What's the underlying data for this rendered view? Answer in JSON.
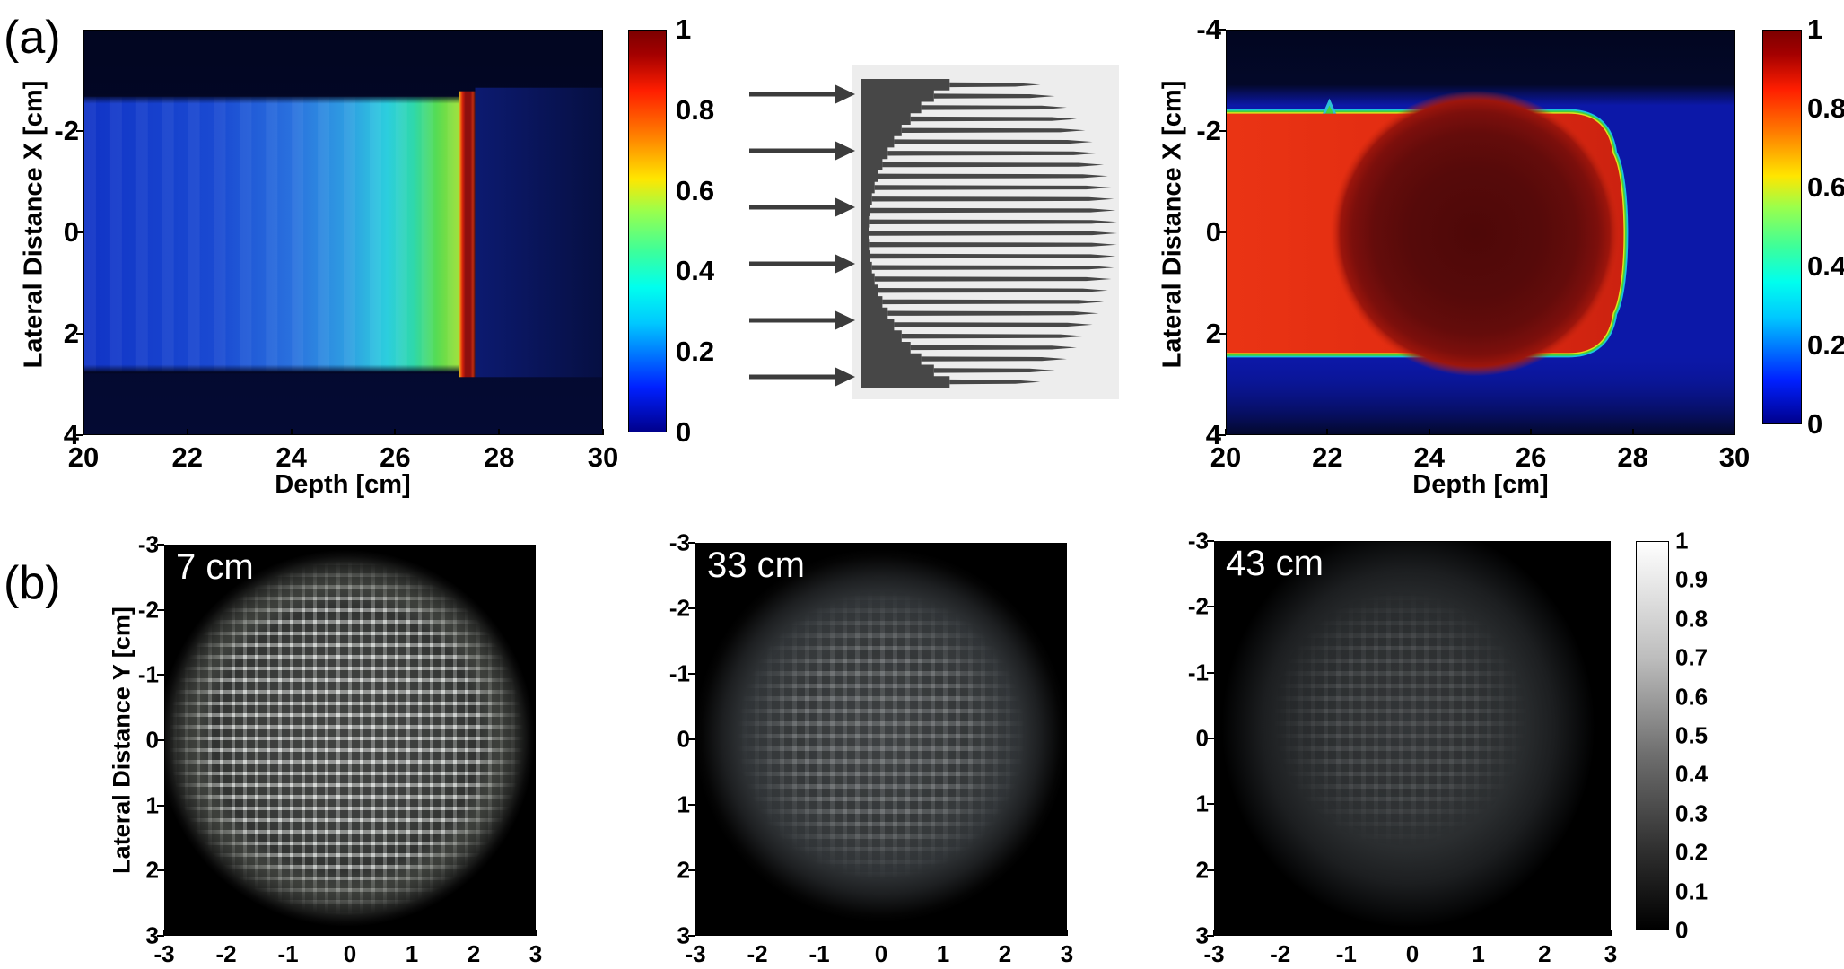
{
  "panel_a": {
    "label": "(a)",
    "pristine_plot": {
      "xlabel": "Depth [cm]",
      "ylabel": "Lateral Distance X [cm]",
      "x_ticks": [
        "20",
        "22",
        "24",
        "26",
        "28",
        "30"
      ],
      "y_ticks": [
        "-2",
        "0",
        "2",
        "4"
      ],
      "y_tick_values": [
        -2,
        0,
        2,
        4
      ]
    },
    "pristine_colorbar_ticks": [
      "1",
      "0.8",
      "0.6",
      "0.4",
      "0.2",
      "0"
    ],
    "sobp_plot": {
      "xlabel": "Depth [cm]",
      "ylabel": "Lateral Distance X [cm]",
      "x_ticks": [
        "20",
        "22",
        "24",
        "26",
        "28",
        "30"
      ],
      "y_ticks": [
        "-4",
        "-2",
        "0",
        "2",
        "4"
      ],
      "y_tick_values": [
        -4,
        -2,
        0,
        2,
        4
      ]
    },
    "sobp_colorbar_ticks": [
      "1",
      "0.8",
      "0.6",
      "0.4",
      "0.2",
      "0"
    ],
    "modulator": {
      "arrow_count": 6,
      "pin_rows": 27
    }
  },
  "panel_b": {
    "label": "(b)",
    "ylabel": "Lateral Distance Y [cm]",
    "x_ticks": [
      "-3",
      "-2",
      "-1",
      "0",
      "1",
      "2",
      "3"
    ],
    "y_ticks": [
      "-3",
      "-2",
      "-1",
      "0",
      "1",
      "2",
      "3"
    ],
    "images": [
      {
        "depth_label": "7 cm"
      },
      {
        "depth_label": "33 cm"
      },
      {
        "depth_label": "43 cm"
      }
    ],
    "colorbar_ticks": [
      "1",
      "0.9",
      "0.8",
      "0.7",
      "0.6",
      "0.5",
      "0.4",
      "0.3",
      "0.2",
      "0.1",
      "0"
    ]
  },
  "chart_data": [
    {
      "type": "heatmap",
      "name": "pristine Bragg peak dose map",
      "xlabel": "Depth [cm]",
      "ylabel": "Lateral Distance X [cm]",
      "x_range": [
        20,
        30
      ],
      "y_range": [
        -4,
        4
      ],
      "value_range": [
        0,
        1
      ],
      "colormap": "jet",
      "colorbar_ticks": [
        0,
        0.2,
        0.4,
        0.6,
        0.8,
        1
      ],
      "features": {
        "beam_halfwidth_cm": 2.7,
        "entrance_dose": 0.25,
        "dose_at_26cm": 0.45,
        "green_shoulder_depth_cm": 27.0,
        "bragg_peak_depth_cm": 27.4,
        "peak_dose": 1.0,
        "dose_beyond_peak": 0.05
      }
    },
    {
      "type": "heatmap",
      "name": "spread-out Bragg peak dose map behind range modulator",
      "xlabel": "Depth [cm]",
      "ylabel": "Lateral Distance X [cm]",
      "x_range": [
        20,
        30
      ],
      "y_range": [
        -4,
        4
      ],
      "value_range": [
        0,
        1
      ],
      "colormap": "jet",
      "colorbar_ticks": [
        0,
        0.2,
        0.4,
        0.6,
        0.8,
        1
      ],
      "features": {
        "beam_halfwidth_cm": 2.6,
        "entrance_dose": 0.85,
        "sobp_center_depth_cm": 24.9,
        "sobp_radius_cm": 2.8,
        "sobp_dose": 1.0,
        "distal_falloff_depth_cm": 27.6,
        "background_dose": 0.15,
        "edge_notch_depth_cm": 22
      }
    },
    {
      "type": "image",
      "name": "beam fluence pattern at 7 cm",
      "depth_label": "7 cm",
      "x_range": [
        -3,
        3
      ],
      "y_range": [
        -3,
        3
      ],
      "colormap": "gray",
      "value_range": [
        0,
        1
      ],
      "peak_intensity": 0.8,
      "spot_radius_cm": 2.9,
      "pattern": "sharp square pin grid"
    },
    {
      "type": "image",
      "name": "beam fluence pattern at 33 cm",
      "depth_label": "33 cm",
      "x_range": [
        -3,
        3
      ],
      "y_range": [
        -3,
        3
      ],
      "colormap": "gray",
      "value_range": [
        0,
        1
      ],
      "peak_intensity": 0.35,
      "spot_radius_cm": 3.0,
      "pattern": "faint blurred pin grid"
    },
    {
      "type": "image",
      "name": "beam fluence pattern at 43 cm",
      "depth_label": "43 cm",
      "x_range": [
        -3,
        3
      ],
      "y_range": [
        -3,
        3
      ],
      "colormap": "gray",
      "value_range": [
        0,
        1
      ],
      "peak_intensity": 0.2,
      "spot_radius_cm": 3.0,
      "pattern": "diffuse, grid nearly washed out"
    }
  ]
}
